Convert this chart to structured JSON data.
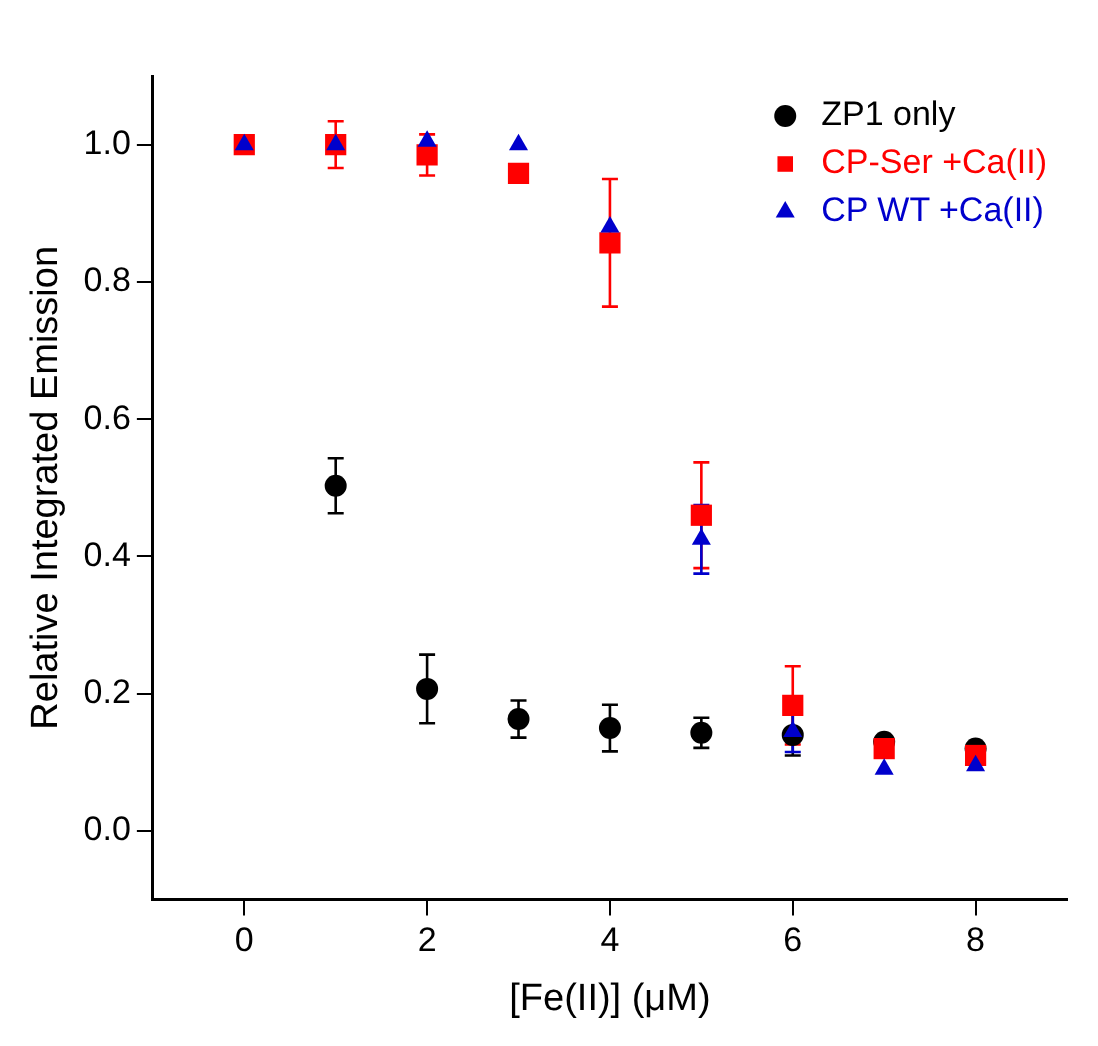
{
  "chart_data": {
    "type": "scatter",
    "xlabel": "[Fe(II)] (μM)",
    "ylabel": "Relative Integrated Emission",
    "x": [
      0,
      1,
      2,
      3,
      4,
      5,
      6,
      7,
      8
    ],
    "series": [
      {
        "name": "ZP1 only",
        "color": "#000000",
        "marker": "circle",
        "values": [
          null,
          0.503,
          0.207,
          0.163,
          0.15,
          0.143,
          0.14,
          0.13,
          0.12
        ],
        "errors": [
          null,
          0.04,
          0.05,
          0.027,
          0.034,
          0.022,
          0.03,
          null,
          null
        ]
      },
      {
        "name": "CP-Ser +Ca(II)",
        "color": "#ff0000",
        "marker": "square",
        "values": [
          1.0,
          1.0,
          0.985,
          0.958,
          0.857,
          0.46,
          0.183,
          0.12,
          0.11
        ],
        "errors": [
          null,
          0.034,
          0.03,
          null,
          0.093,
          0.077,
          0.057,
          null,
          null
        ]
      },
      {
        "name": "CP WT +Ca(II)",
        "color": "#0000cc",
        "marker": "triangle",
        "values": [
          1.0,
          1.0,
          1.005,
          1.0,
          0.88,
          0.425,
          0.145,
          0.09,
          0.095
        ],
        "errors": [
          null,
          null,
          null,
          null,
          null,
          0.05,
          0.03,
          null,
          null
        ]
      }
    ],
    "xlim": [
      -1,
      9
    ],
    "xticks": [
      0,
      2,
      4,
      6,
      8
    ],
    "ylim": [
      -0.1,
      1.1
    ],
    "yticks": [
      {
        "value": 0,
        "label": "0.0"
      },
      {
        "value": 0.2,
        "label": "0.2"
      },
      {
        "value": 0.4,
        "label": "0.4"
      },
      {
        "value": 0.6,
        "label": "0.6"
      },
      {
        "value": 0.8,
        "label": "0.8"
      },
      {
        "value": 1,
        "label": "1.0"
      }
    ],
    "grid": false,
    "legend": "top right"
  }
}
